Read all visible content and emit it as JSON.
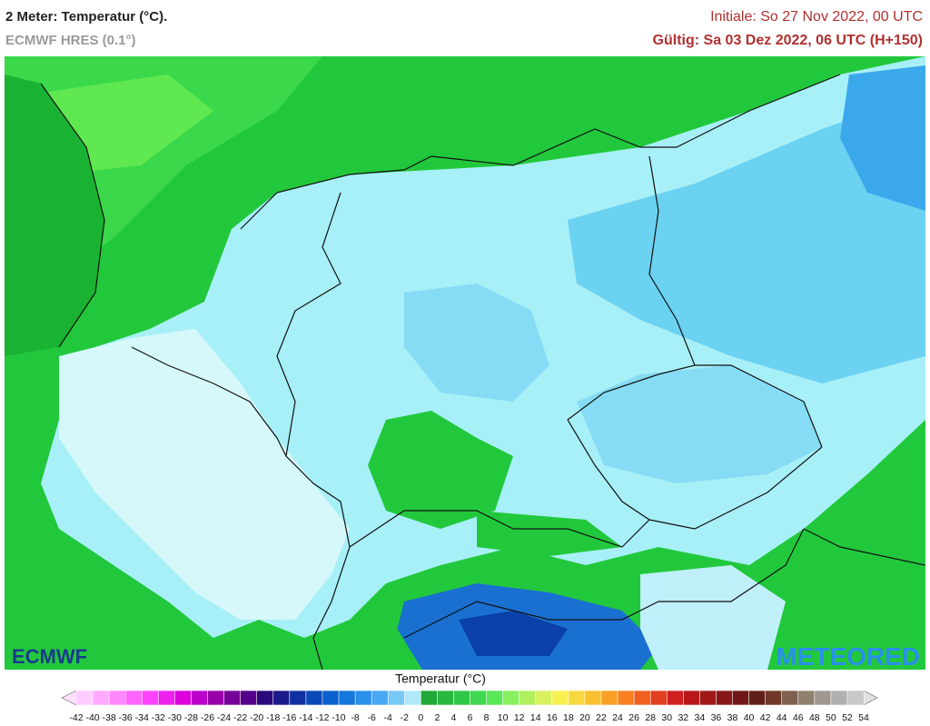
{
  "header": {
    "title": "2 Meter: Temperatur (°C).",
    "subtitle": "ECMWF HRES (0.1°)",
    "initial": "Initiale: So 27 Nov 2022, 00 UTC",
    "valid": "Gültig: Sa 03 Dez 2022, 06 UTC (H+150)"
  },
  "logos": {
    "left": "ECMWF",
    "right": "METEORED"
  },
  "legend": {
    "title": "Temperatur (°C)",
    "labels": [
      -42,
      -40,
      -38,
      -36,
      -34,
      -32,
      -30,
      -28,
      -26,
      -24,
      -22,
      -20,
      -18,
      -16,
      -14,
      -12,
      -10,
      -8,
      -6,
      -4,
      -2,
      0,
      2,
      4,
      6,
      8,
      10,
      12,
      14,
      16,
      18,
      20,
      22,
      24,
      26,
      28,
      30,
      32,
      34,
      36,
      38,
      40,
      42,
      44,
      46,
      48,
      50,
      52,
      54
    ],
    "colors": [
      "#ffccff",
      "#ffaaff",
      "#ff88ff",
      "#ff66ff",
      "#ff44ff",
      "#ee22ee",
      "#dd00dd",
      "#bb00cc",
      "#9900aa",
      "#770099",
      "#550088",
      "#2a0a7a",
      "#1a1a8a",
      "#1030a0",
      "#0a48b8",
      "#0a60cc",
      "#1478dc",
      "#2a90ea",
      "#48a8f2",
      "#78c8f6",
      "#b0e8fa",
      "#20a838",
      "#28b840",
      "#30c848",
      "#40d850",
      "#58e858",
      "#88f060",
      "#b0f060",
      "#d8f060",
      "#f8f050",
      "#f8d840",
      "#f8c030",
      "#f8a028",
      "#f88020",
      "#f06020",
      "#e04020",
      "#d02020",
      "#b81818",
      "#a01818",
      "#881818",
      "#701818",
      "#602018",
      "#703828",
      "#806050",
      "#908070",
      "#a09890",
      "#b0b0b0",
      "#c8c8c8"
    ],
    "under_color": "#ffe0ff",
    "over_color": "#e0e0e0"
  }
}
